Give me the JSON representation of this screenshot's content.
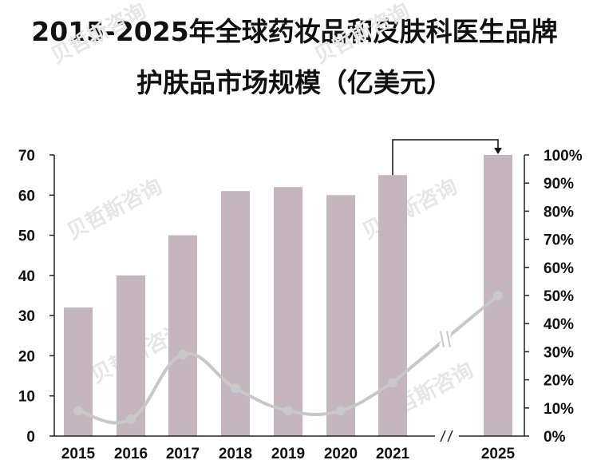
{
  "title": {
    "line1": "2015-2025年全球药妆品和皮肤科医生品牌",
    "line2": "护肤品市场规模（亿美元）"
  },
  "watermark": "贝哲斯咨询",
  "colors": {
    "bar": "#c4b5bf",
    "line": "#c8c8c8",
    "axis": "#222222",
    "text": "#111111"
  },
  "chart_data": {
    "type": "bar",
    "categories": [
      "2015",
      "2016",
      "2017",
      "2018",
      "2019",
      "2020",
      "2021",
      "2025"
    ],
    "series": [
      {
        "type": "bar",
        "axis": "left",
        "values": [
          32,
          40,
          50,
          61,
          62,
          60,
          65,
          70
        ]
      },
      {
        "type": "line",
        "axis": "right",
        "values": [
          0.09,
          0.06,
          0.29,
          0.17,
          0.09,
          0.09,
          0.19,
          0.5
        ]
      }
    ],
    "ylim": [
      0,
      70
    ],
    "yticks": [
      "0",
      "10",
      "20",
      "30",
      "40",
      "50",
      "60",
      "70"
    ],
    "y2lim": [
      0,
      1
    ],
    "y2ticks": [
      "0%",
      "10%",
      "20%",
      "30%",
      "40%",
      "50%",
      "60%",
      "70%",
      "80%",
      "90%",
      "100%"
    ],
    "axis_break_between": [
      "2021",
      "2025"
    ],
    "annotation": "arrow from 2021 bar to 2025 bar",
    "legend": "none",
    "grid": false
  }
}
